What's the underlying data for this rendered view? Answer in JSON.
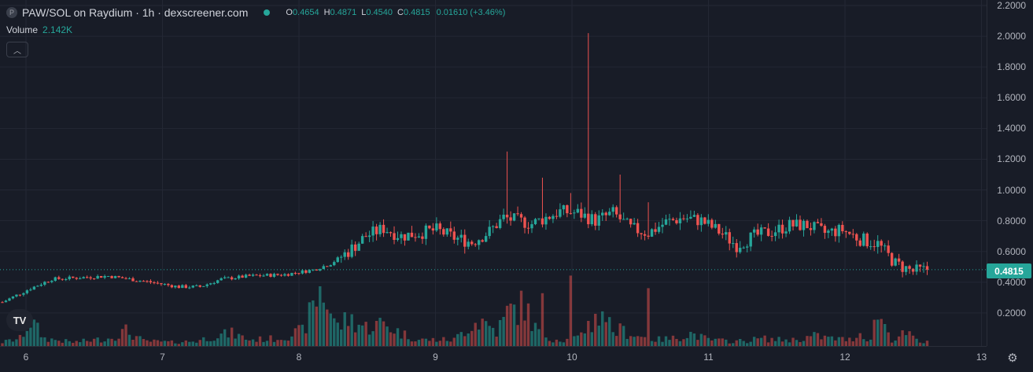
{
  "header": {
    "pair_badge": "P",
    "title": "PAW/SOL on Raydium · 1h · dexscreener.com",
    "ohlc": {
      "o_label": "O",
      "o_value": "0.4654",
      "h_label": "H",
      "h_value": "0.4871",
      "l_label": "L",
      "l_value": "0.4540",
      "c_label": "C",
      "c_value": "0.4815",
      "change": "0.01610 (+3.46%)"
    }
  },
  "volume_legend": {
    "label": "Volume",
    "value": "2.142K"
  },
  "collapse_icon": "chevron-up-icon",
  "logo_text": "TV",
  "price_axis": {
    "ticks": [
      "2.2000",
      "2.0000",
      "1.8000",
      "1.6000",
      "1.4000",
      "1.2000",
      "1.0000",
      "0.8000",
      "0.6000",
      "0.4000",
      "0.2000"
    ],
    "current_price": "0.4815"
  },
  "time_axis": {
    "ticks": [
      "6",
      "7",
      "8",
      "9",
      "10",
      "11",
      "12",
      "13"
    ]
  },
  "colors": {
    "up": "#26a69a",
    "down": "#ef5350",
    "background": "#181c27",
    "grid": "#232734"
  },
  "chart_data": {
    "type": "candlestick",
    "title": "PAW/SOL on Raydium · 1h · dexscreener.com",
    "y_range": [
      0,
      2.2
    ],
    "x_ticks": [
      "6",
      "7",
      "8",
      "9",
      "10",
      "11",
      "12",
      "13"
    ],
    "last_price": 0.4815,
    "volume_shown": true,
    "grid": true,
    "price_anchors": [
      [
        0,
        0.27
      ],
      [
        8,
        0.36
      ],
      [
        14,
        0.42
      ],
      [
        30,
        0.44
      ],
      [
        42,
        0.4
      ],
      [
        50,
        0.37
      ],
      [
        56,
        0.37
      ],
      [
        62,
        0.42
      ],
      [
        70,
        0.44
      ],
      [
        80,
        0.45
      ],
      [
        88,
        0.48
      ],
      [
        93,
        0.52
      ],
      [
        98,
        0.6
      ],
      [
        103,
        0.7
      ],
      [
        108,
        0.75
      ],
      [
        113,
        0.7
      ],
      [
        118,
        0.72
      ],
      [
        123,
        0.74
      ],
      [
        128,
        0.69
      ],
      [
        133,
        0.66
      ],
      [
        138,
        0.73
      ],
      [
        142,
        0.82
      ],
      [
        146,
        0.8
      ],
      [
        150,
        0.78
      ],
      [
        154,
        0.82
      ],
      [
        158,
        0.86
      ],
      [
        163,
        0.85
      ],
      [
        168,
        0.8
      ],
      [
        173,
        0.85
      ],
      [
        178,
        0.75
      ],
      [
        183,
        0.72
      ],
      [
        188,
        0.79
      ],
      [
        193,
        0.82
      ],
      [
        198,
        0.8
      ],
      [
        203,
        0.73
      ],
      [
        208,
        0.64
      ],
      [
        213,
        0.7
      ],
      [
        218,
        0.73
      ],
      [
        223,
        0.77
      ],
      [
        228,
        0.77
      ],
      [
        233,
        0.72
      ],
      [
        238,
        0.74
      ],
      [
        243,
        0.68
      ],
      [
        248,
        0.65
      ],
      [
        253,
        0.52
      ],
      [
        258,
        0.47
      ],
      [
        262,
        0.48
      ]
    ],
    "volume_anchors": [
      [
        0,
        0.03
      ],
      [
        5,
        0.06
      ],
      [
        8,
        0.2
      ],
      [
        12,
        0.06
      ],
      [
        20,
        0.03
      ],
      [
        30,
        0.06
      ],
      [
        35,
        0.12
      ],
      [
        40,
        0.04
      ],
      [
        48,
        0.03
      ],
      [
        55,
        0.04
      ],
      [
        60,
        0.08
      ],
      [
        65,
        0.1
      ],
      [
        70,
        0.05
      ],
      [
        78,
        0.06
      ],
      [
        85,
        0.12
      ],
      [
        88,
        0.3
      ],
      [
        90,
        0.46
      ],
      [
        92,
        0.35
      ],
      [
        95,
        0.15
      ],
      [
        98,
        0.22
      ],
      [
        103,
        0.15
      ],
      [
        108,
        0.18
      ],
      [
        113,
        0.1
      ],
      [
        118,
        0.05
      ],
      [
        123,
        0.05
      ],
      [
        128,
        0.05
      ],
      [
        133,
        0.18
      ],
      [
        136,
        0.2
      ],
      [
        140,
        0.12
      ],
      [
        144,
        0.28
      ],
      [
        148,
        0.32
      ],
      [
        151,
        0.14
      ],
      [
        155,
        0.06
      ],
      [
        160,
        0.05
      ],
      [
        165,
        0.08
      ],
      [
        170,
        0.3
      ],
      [
        173,
        0.12
      ],
      [
        176,
        0.12
      ],
      [
        180,
        0.08
      ],
      [
        185,
        0.05
      ],
      [
        190,
        0.06
      ],
      [
        195,
        0.1
      ],
      [
        200,
        0.05
      ],
      [
        205,
        0.04
      ],
      [
        210,
        0.04
      ],
      [
        215,
        0.06
      ],
      [
        220,
        0.05
      ],
      [
        225,
        0.05
      ],
      [
        230,
        0.08
      ],
      [
        235,
        0.06
      ],
      [
        240,
        0.05
      ],
      [
        243,
        0.1
      ],
      [
        246,
        0.05
      ],
      [
        248,
        0.28
      ],
      [
        252,
        0.05
      ],
      [
        256,
        0.1
      ],
      [
        260,
        0.03
      ]
    ],
    "spikes": [
      {
        "i": 143,
        "high": 1.25,
        "volume": 0.32
      },
      {
        "i": 153,
        "high": 1.08,
        "volume": 0.42
      },
      {
        "i": 161,
        "high": 0.98,
        "volume": 0.56
      },
      {
        "i": 166,
        "high": 2.02,
        "volume": 0.2
      },
      {
        "i": 175,
        "high": 1.1,
        "volume": 0.18
      },
      {
        "i": 183,
        "high": 0.92,
        "volume": 0.46
      }
    ]
  }
}
